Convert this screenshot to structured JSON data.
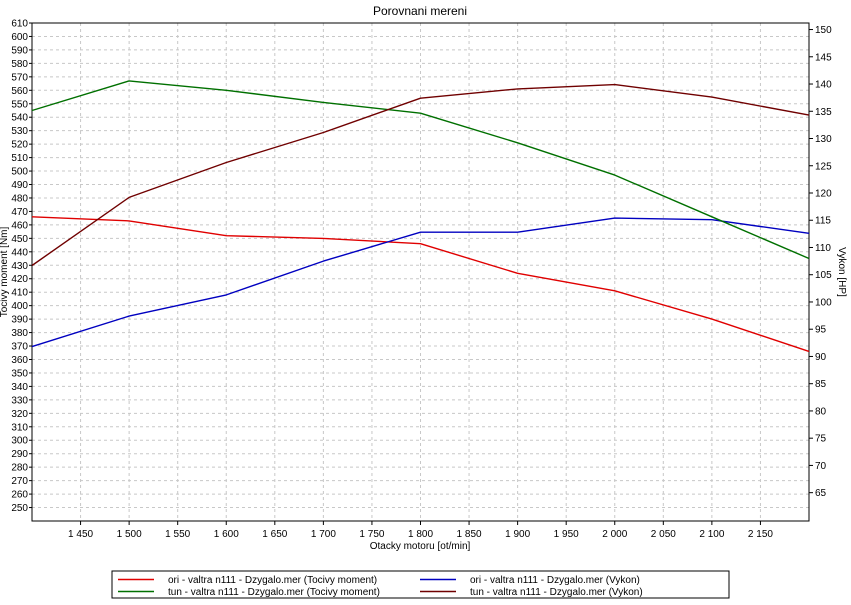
{
  "chart_data": {
    "type": "line",
    "title": "Porovnani mereni",
    "xlabel": "Otacky motoru [ot/min]",
    "ylabel_left": "Tocivy moment [Nm]",
    "ylabel_right": "Vykon [HP]",
    "xlim": [
      1400,
      2200
    ],
    "ylim_left": [
      240,
      610
    ],
    "ylim_right": [
      59.8,
      151.2
    ],
    "grid": true,
    "x_ticks": [
      1450,
      1500,
      1550,
      1600,
      1650,
      1700,
      1750,
      1800,
      1850,
      1900,
      1950,
      2000,
      2050,
      2100,
      2150
    ],
    "x_tick_labels": [
      "1 450",
      "1 500",
      "1 550",
      "1 600",
      "1 650",
      "1 700",
      "1 750",
      "1 800",
      "1 850",
      "1 900",
      "1 950",
      "2 000",
      "2 050",
      "2 100",
      "2 150"
    ],
    "y_left_ticks": [
      250,
      260,
      270,
      280,
      290,
      300,
      310,
      320,
      330,
      340,
      350,
      360,
      370,
      380,
      390,
      400,
      410,
      420,
      430,
      440,
      450,
      460,
      470,
      480,
      490,
      500,
      510,
      520,
      530,
      540,
      550,
      560,
      570,
      580,
      590,
      600,
      610
    ],
    "y_right_ticks": [
      65,
      70,
      75,
      80,
      85,
      90,
      95,
      100,
      105,
      110,
      115,
      120,
      125,
      130,
      135,
      140,
      145,
      150
    ],
    "series": [
      {
        "name": "ori - valtra n111 - Dzygalo.mer  (Tocivy moment)",
        "axis": "left",
        "color": "#e00000",
        "x": [
          1400,
          1500,
          1600,
          1700,
          1800,
          1900,
          2000,
          2100,
          2200
        ],
        "values": [
          466,
          463,
          452,
          450,
          446,
          424,
          411,
          390,
          366
        ]
      },
      {
        "name": "ori - valtra n111 - Dzygalo.mer  (Vykon)",
        "axis": "right",
        "color": "#0000c0",
        "x": [
          1400,
          1500,
          1600,
          1700,
          1800,
          1900,
          2000,
          2100,
          2200
        ],
        "values": [
          91.8,
          97.4,
          101.3,
          107.5,
          112.8,
          112.8,
          115.4,
          115.1,
          112.6
        ]
      },
      {
        "name": "tun - valtra n111 - Dzygalo.mer  (Tocivy moment)",
        "axis": "left",
        "color": "#007000",
        "x": [
          1400,
          1500,
          1600,
          1700,
          1800,
          1900,
          2000,
          2100,
          2200
        ],
        "values": [
          545,
          567,
          560,
          551,
          543,
          521,
          497,
          466,
          435
        ]
      },
      {
        "name": "tun - valtra n111 - Dzygalo.mer  (Vykon)",
        "axis": "right",
        "color": "#700000",
        "x": [
          1400,
          1500,
          1600,
          1700,
          1800,
          1900,
          2000,
          2100,
          2200
        ],
        "values": [
          106.7,
          119.2,
          125.6,
          131.1,
          137.4,
          139.1,
          139.9,
          137.6,
          134.3
        ]
      }
    ]
  }
}
